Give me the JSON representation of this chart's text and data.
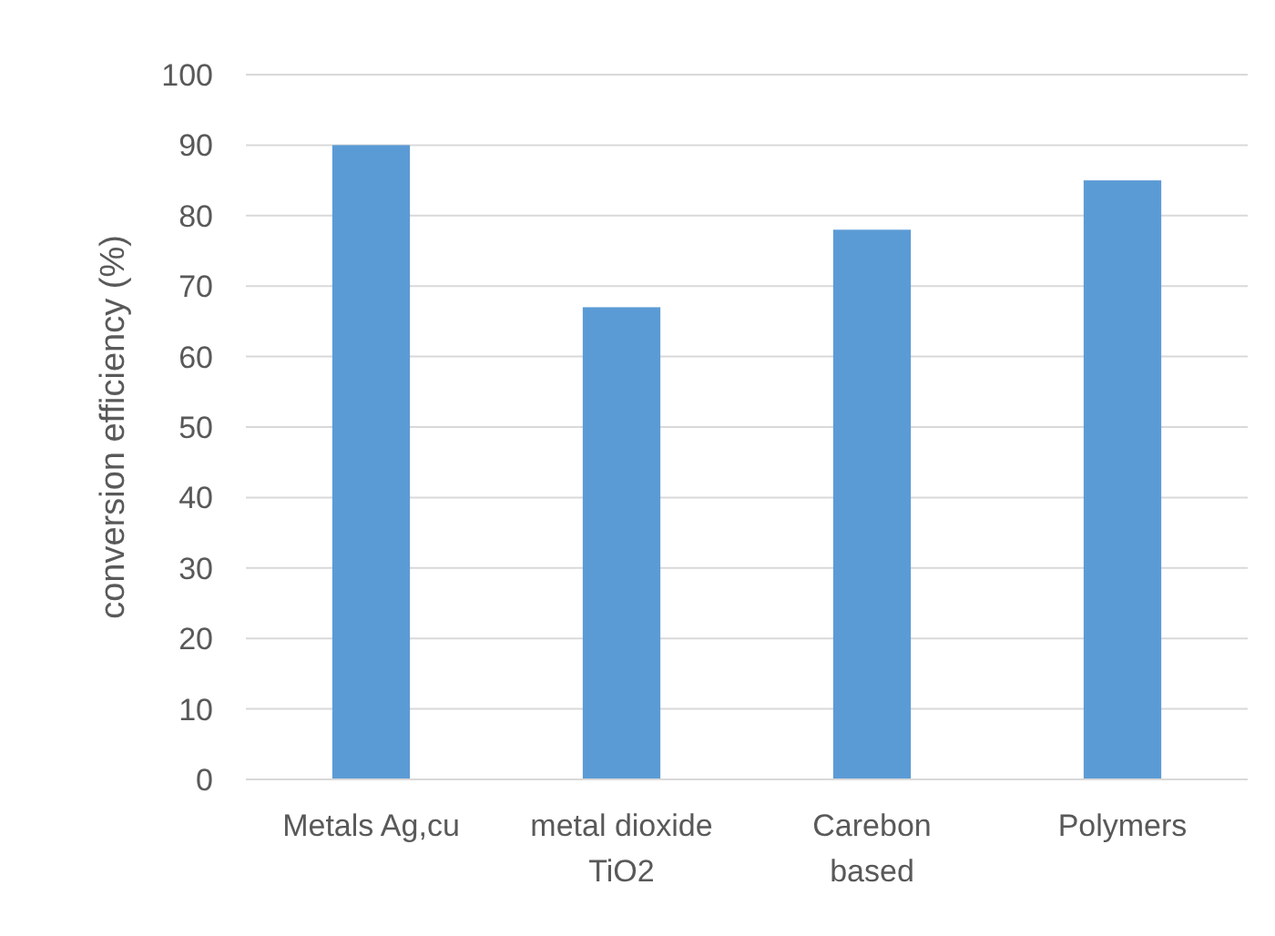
{
  "chart_data": {
    "type": "bar",
    "ylabel": "conversion efficiency (%)",
    "categories": [
      "Metals Ag,cu",
      "metal dioxide\nTiO2",
      "Carebon\nbased",
      "Polymers"
    ],
    "values": [
      90,
      67,
      78,
      85
    ],
    "color": "#5b9bd5",
    "ylim": [
      0,
      100
    ],
    "yticks": [
      0,
      10,
      20,
      30,
      40,
      50,
      60,
      70,
      80,
      90,
      100
    ],
    "grid": "y"
  }
}
